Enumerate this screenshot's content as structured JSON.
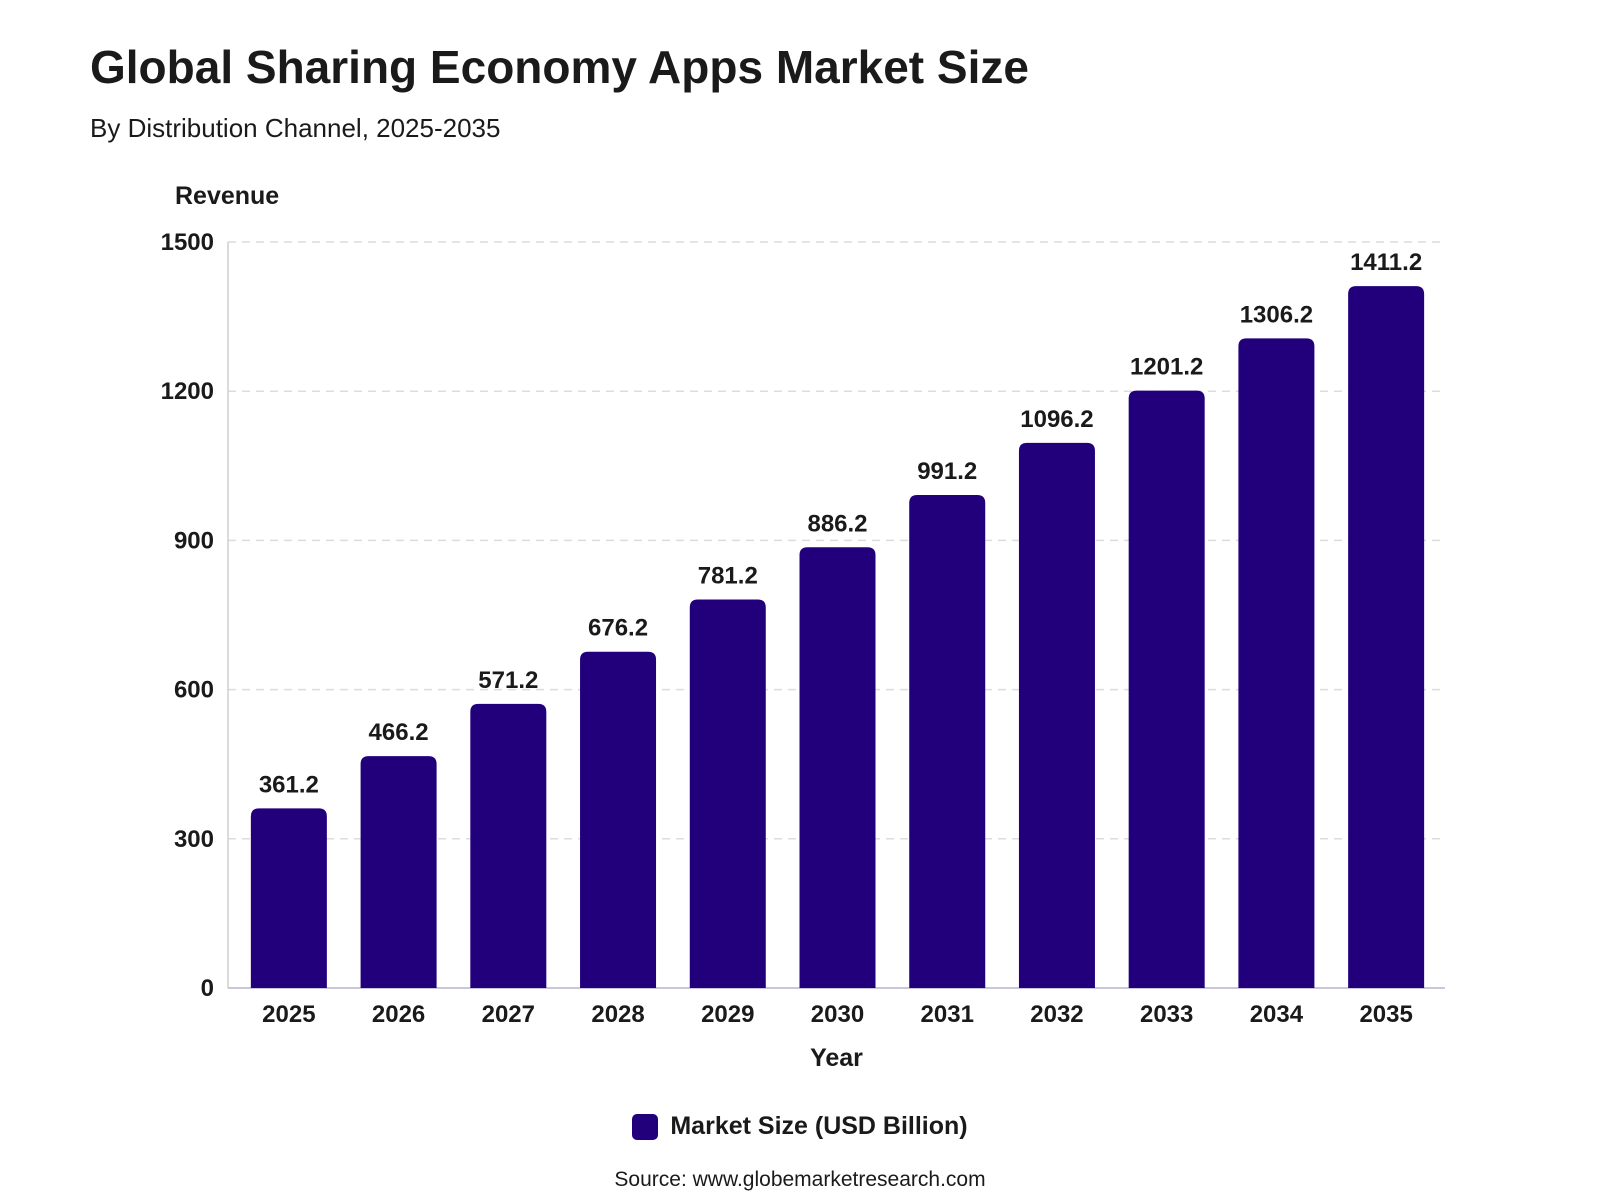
{
  "chart_data": {
    "type": "bar",
    "title": "Global Sharing Economy Apps Market Size",
    "subtitle": "By Distribution Channel, 2025-2035",
    "xlabel": "Year",
    "ylabel": "Revenue",
    "categories": [
      "2025",
      "2026",
      "2027",
      "2028",
      "2029",
      "2030",
      "2031",
      "2032",
      "2033",
      "2034",
      "2035"
    ],
    "series": [
      {
        "name": "Market Size (USD Billion)",
        "values": [
          361.2,
          466.2,
          571.2,
          676.2,
          781.2,
          886.2,
          991.2,
          1096.2,
          1201.2,
          1306.2,
          1411.2
        ],
        "color": "#22007c"
      }
    ],
    "data_labels": [
      "361.2",
      "466.2",
      "571.2",
      "676.2",
      "781.2",
      "886.2",
      "991.2",
      "1096.2",
      "1201.2",
      "1306.2",
      "1411.2"
    ],
    "ylim": [
      0,
      1500
    ],
    "yticks": [
      0,
      300,
      600,
      900,
      1200,
      1500
    ],
    "grid": true,
    "legend_position": "bottom-center"
  },
  "source": "Source: www.globemarketresearch.com"
}
